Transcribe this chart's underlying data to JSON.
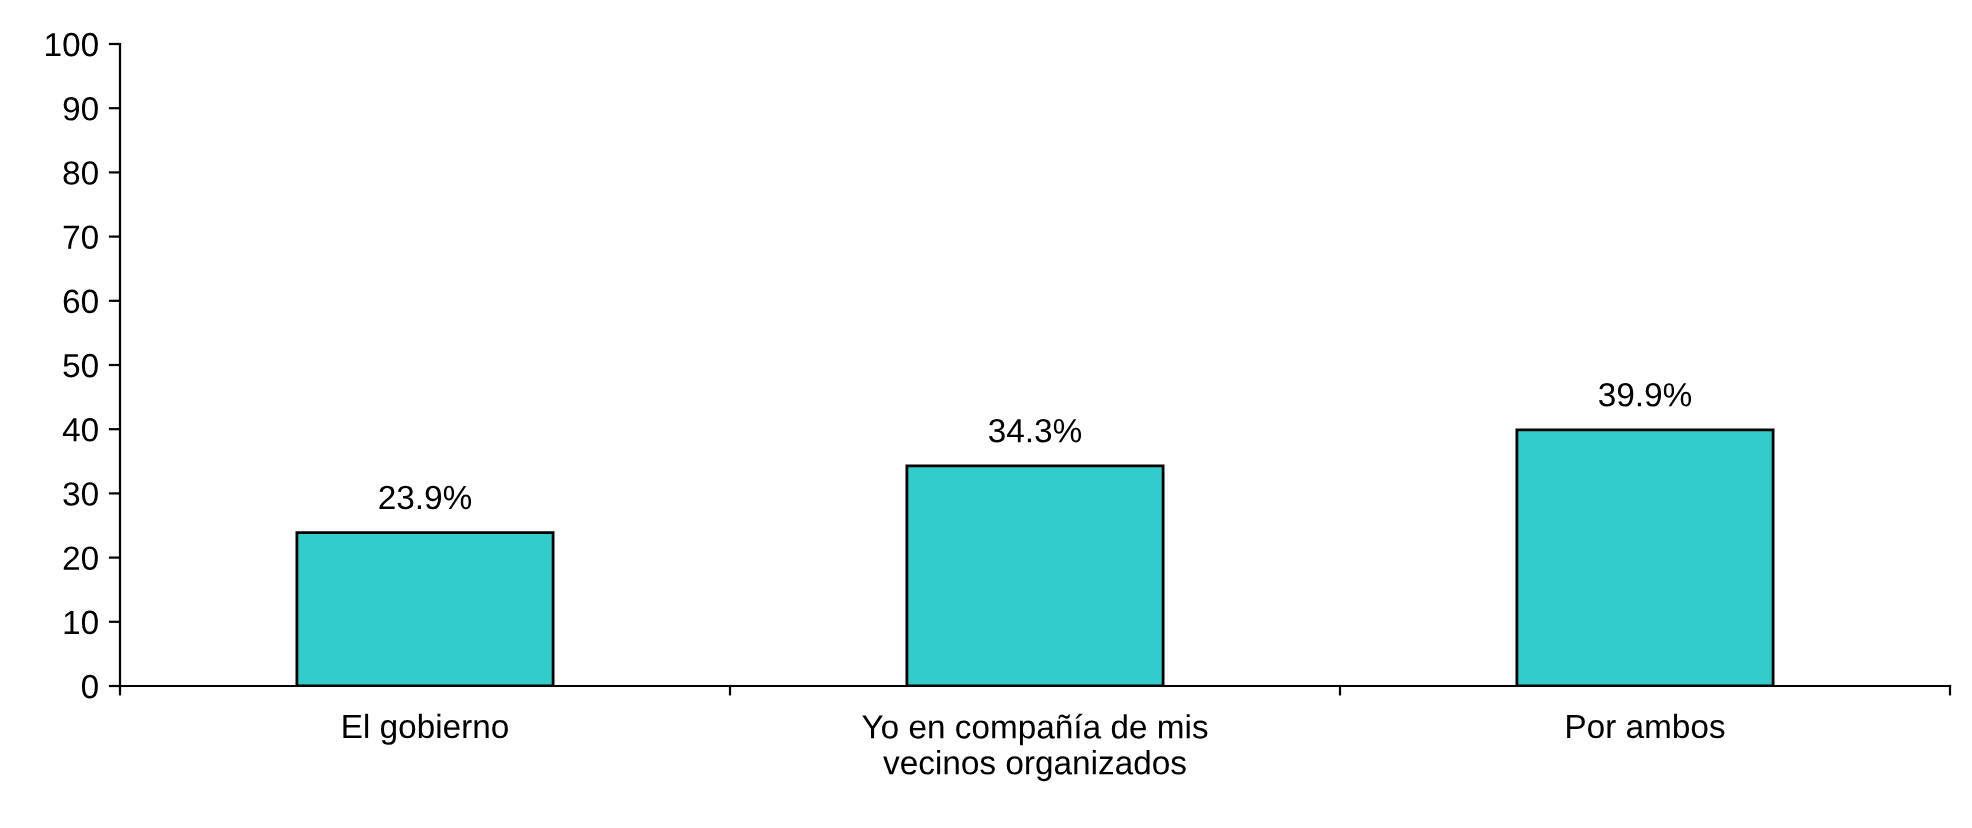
{
  "chart_data": {
    "type": "bar",
    "categories": [
      "El gobierno",
      "Yo en compañía de mis\nvecinos organizados",
      "Por ambos"
    ],
    "values": [
      23.9,
      34.3,
      39.9
    ],
    "value_labels": [
      "23.9%",
      "34.3%",
      "39.9%"
    ],
    "color": "#33cccc",
    "ylim": [
      0,
      100
    ],
    "yticks": [
      0,
      10,
      20,
      30,
      40,
      50,
      60,
      70,
      80,
      90,
      100
    ],
    "grid": false,
    "legend": false
  }
}
